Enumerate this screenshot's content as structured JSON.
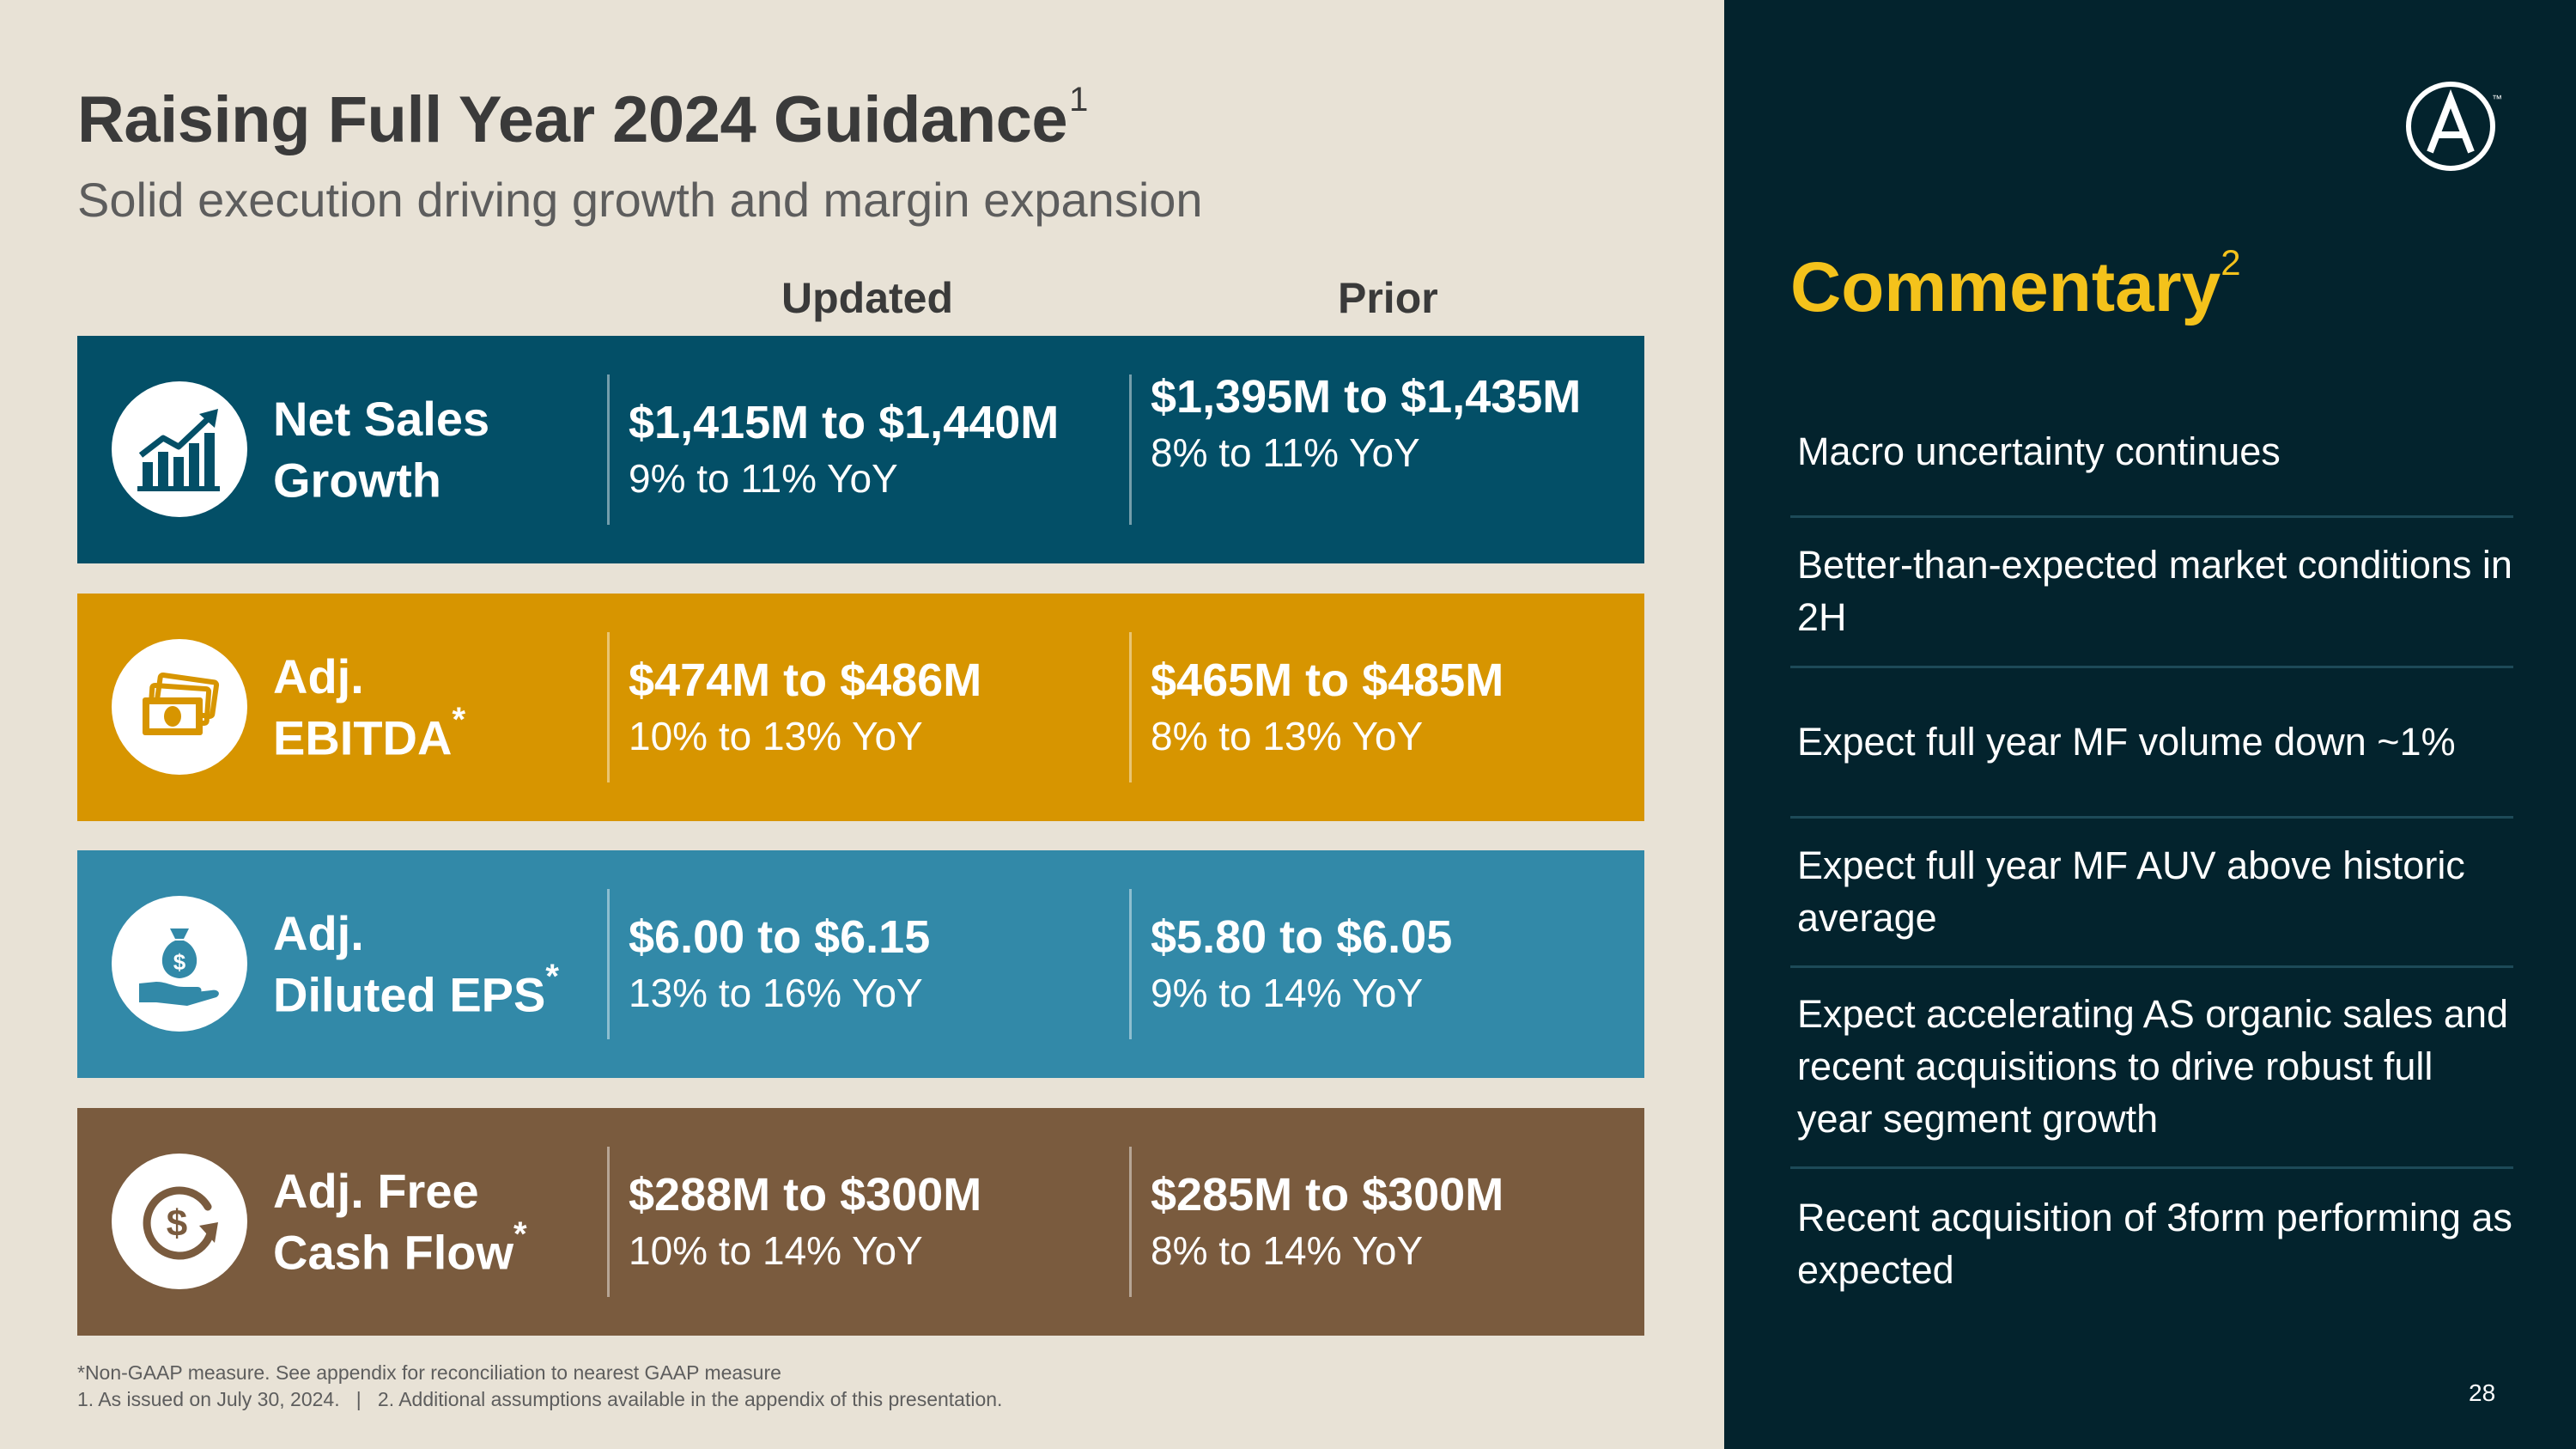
{
  "header": {
    "title": "Raising Full Year 2024 Guidance",
    "title_footnote": "1",
    "subtitle": "Solid execution driving growth and margin expansion"
  },
  "columns": {
    "updated": "Updated",
    "prior": "Prior"
  },
  "rows": [
    {
      "label_line1": "Net Sales",
      "label_line2": "Growth",
      "asterisk": "",
      "icon": "growth-chart-icon",
      "color": "#034f67",
      "updated_range": "$1,415M to $1,440M",
      "updated_yoy": "9% to 11% YoY",
      "prior_range": "$1,395M to $1,435M",
      "prior_yoy": "8% to 11% YoY"
    },
    {
      "label_line1": "Adj.",
      "label_line2": "EBITDA",
      "asterisk": "*",
      "icon": "money-stack-icon",
      "color": "#d79500",
      "updated_range": "$474M to $486M",
      "updated_yoy": "10% to 13% YoY",
      "prior_range": "$465M to $485M",
      "prior_yoy": "8% to 13% YoY"
    },
    {
      "label_line1": "Adj.",
      "label_line2": "Diluted EPS",
      "asterisk": "*",
      "icon": "money-bag-hand-icon",
      "color": "#3289a8",
      "updated_range": "$6.00 to $6.15",
      "updated_yoy": "13% to 16% YoY",
      "prior_range": "$5.80 to $6.05",
      "prior_yoy": "9% to 14% YoY"
    },
    {
      "label_line1": "Adj. Free",
      "label_line2": "Cash Flow",
      "asterisk": "*",
      "icon": "cash-cycle-icon",
      "color": "#7a5b3e",
      "updated_range": "$288M to $300M",
      "updated_yoy": "10% to 14% YoY",
      "prior_range": "$285M to $300M",
      "prior_yoy": "8% to 14% YoY"
    }
  ],
  "footnotes": {
    "line1": "*Non-GAAP measure. See appendix for reconciliation to nearest GAAP measure",
    "line2": "1. As issued on July 30, 2024.   |   2. Additional assumptions available in the appendix of this presentation."
  },
  "commentary": {
    "title": "Commentary",
    "title_footnote": "2",
    "items": [
      "Macro uncertainty continues",
      "Better-than-expected market conditions in 2H",
      "Expect full year MF volume down ~1%",
      "Expect full year MF AUV above historic average",
      "Expect accelerating AS organic sales and recent acquisitions to drive robust full year segment growth",
      "Recent acquisition of 3form performing as expected"
    ]
  },
  "logo": {
    "icon": "armstrong-logo-icon",
    "trademark": "™"
  },
  "page_number": "28"
}
